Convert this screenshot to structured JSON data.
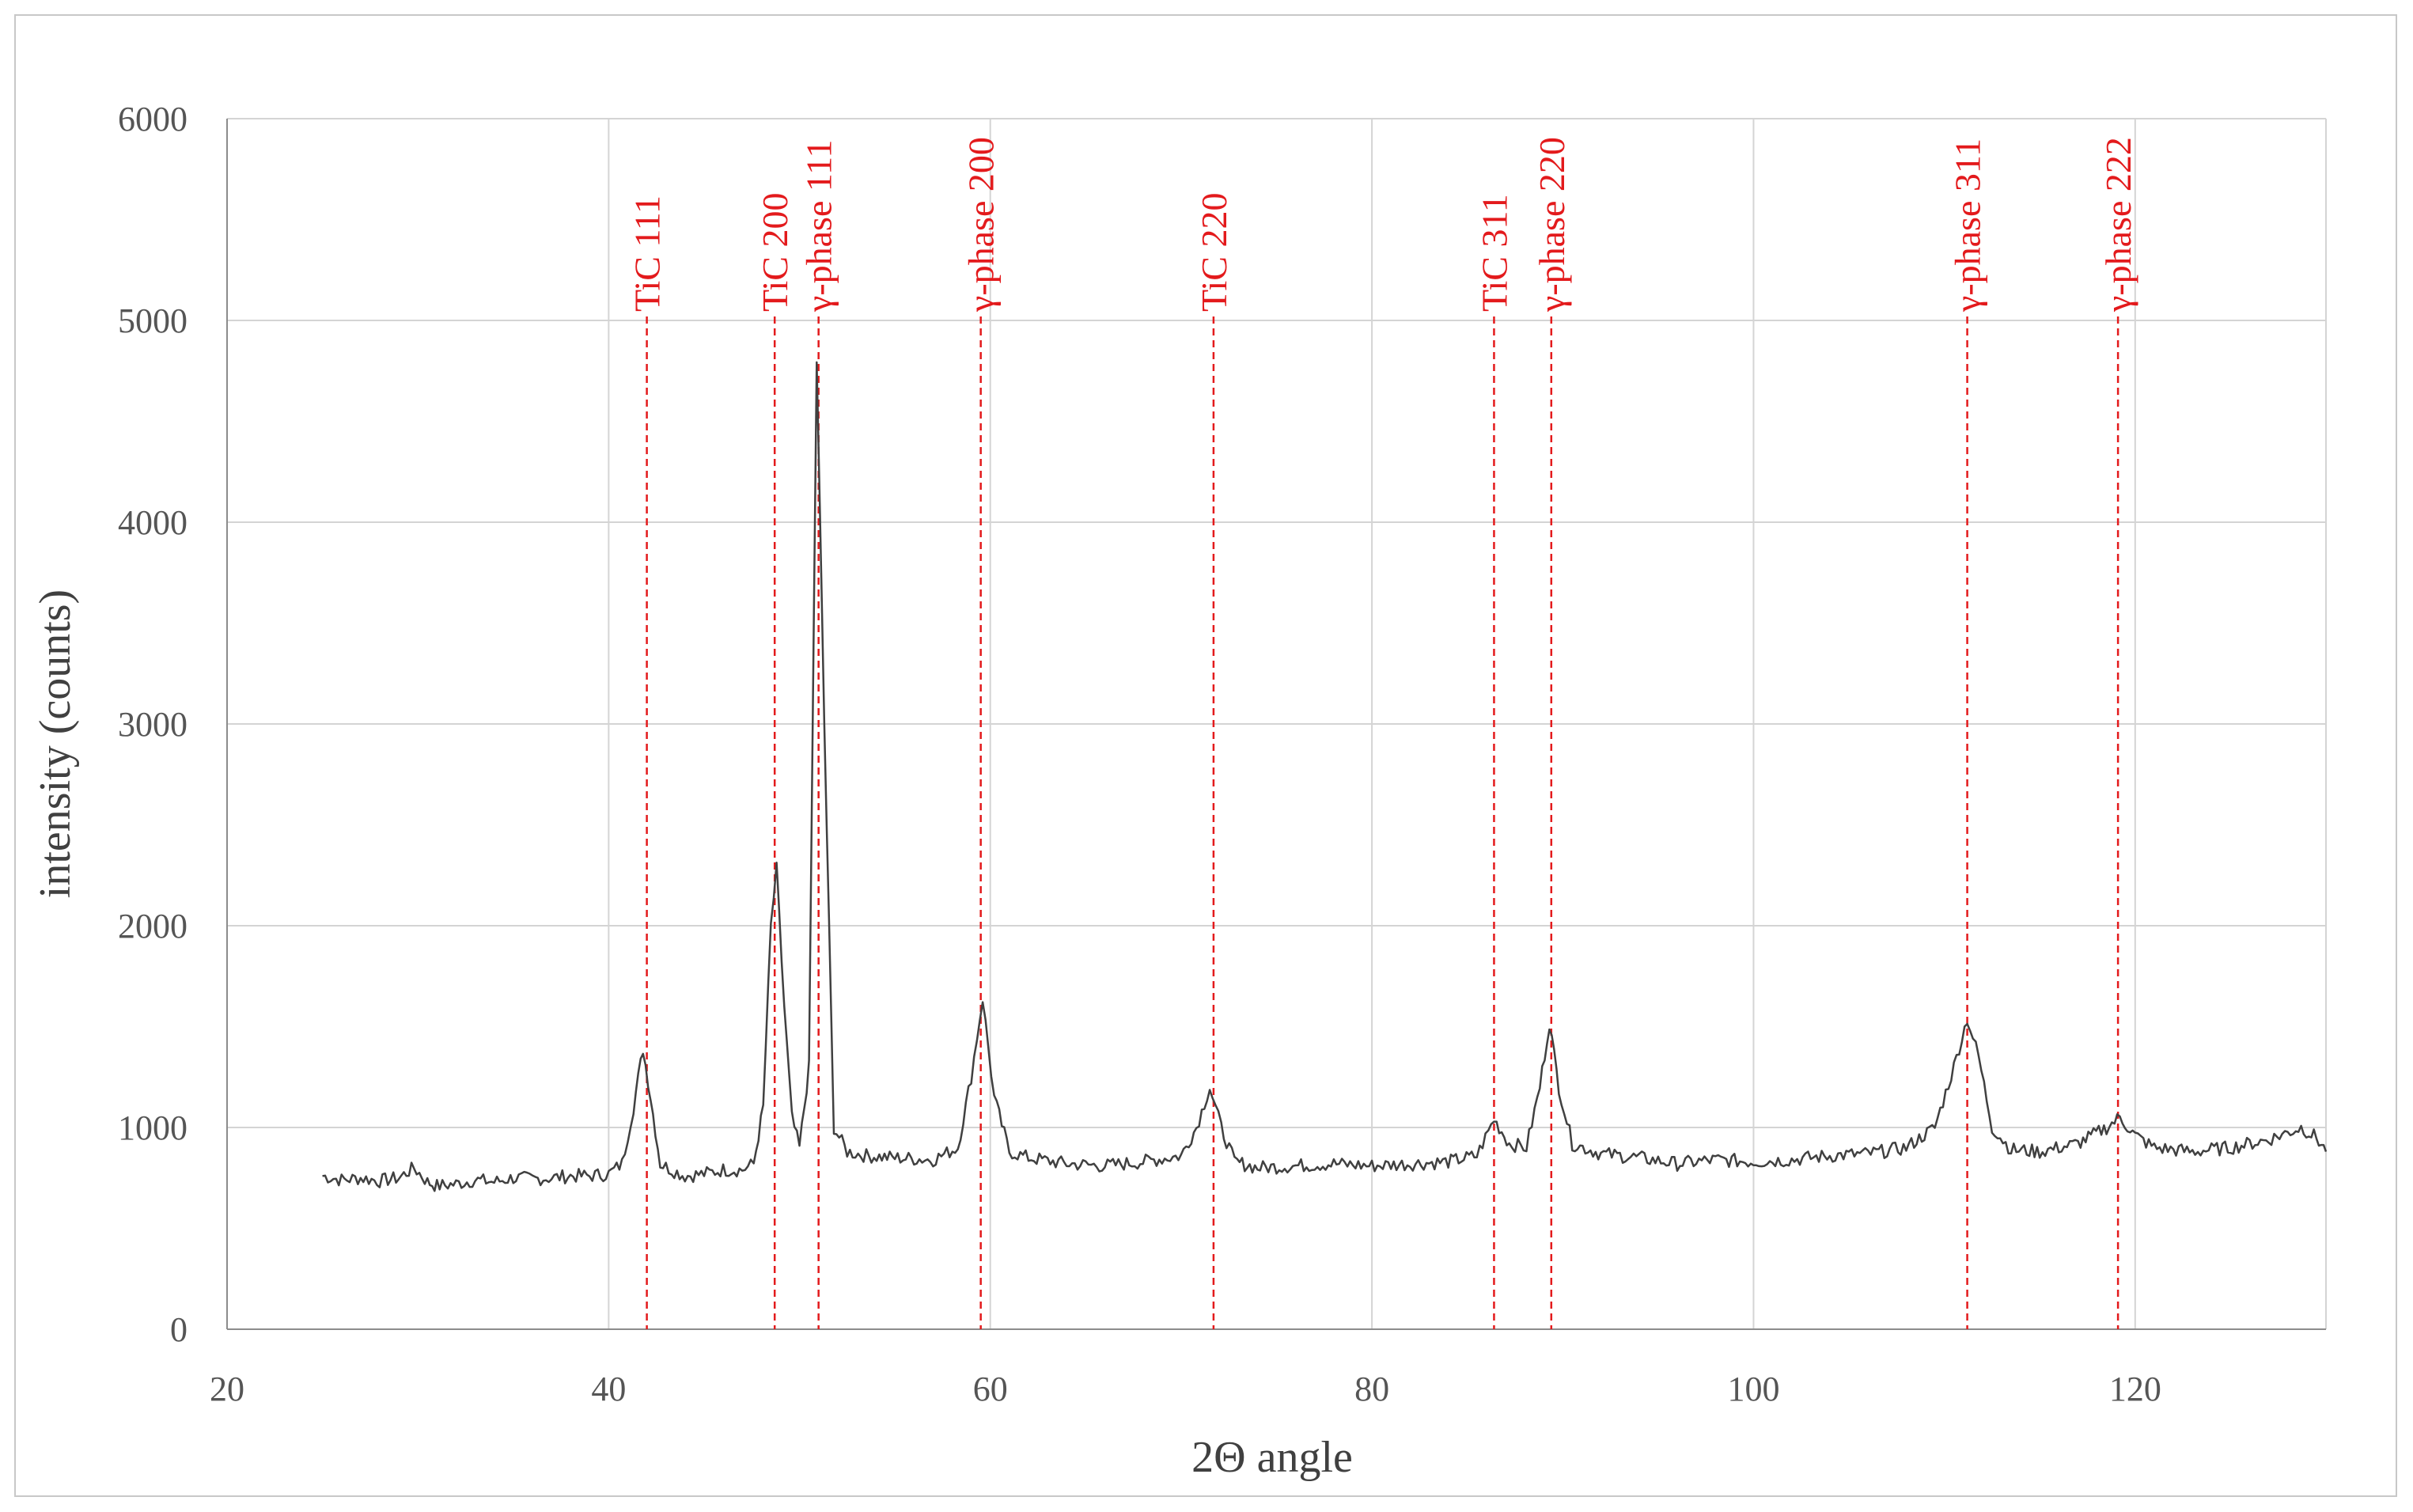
{
  "chart_data": {
    "type": "line",
    "title": "",
    "xlabel": "2Θ angle",
    "ylabel": "intensity (counts)",
    "xlim": [
      20,
      130
    ],
    "ylim": [
      0,
      6000
    ],
    "x_ticks": [
      20,
      40,
      60,
      80,
      100,
      120
    ],
    "y_ticks": [
      0,
      1000,
      2000,
      3000,
      4000,
      5000,
      6000
    ],
    "grid": true,
    "colors": {
      "line": "#404040",
      "peak_marker": "#e31a1c",
      "grid": "#d4d4d4",
      "axis": "#8c8c8c"
    },
    "series": [
      {
        "x": [
          25,
          26,
          27,
          28,
          29,
          29.8,
          30.5,
          31,
          32,
          33,
          34,
          35,
          36,
          37,
          38,
          39,
          40,
          40.7,
          41.3,
          41.8,
          42.2,
          42.7,
          43.3,
          44,
          45,
          46,
          47,
          47.6,
          48.1,
          48.5,
          48.8,
          49.2,
          49.6,
          50.0,
          50.5,
          50.9,
          51.3,
          51.8,
          52.5,
          53.5,
          55,
          57,
          58.3,
          59.0,
          59.6,
          60.2,
          61,
          62,
          64,
          66,
          68,
          70,
          70.8,
          71.5,
          72.1,
          72.8,
          74,
          76,
          78,
          80,
          82,
          84,
          85.5,
          86.4,
          87.2,
          88.1,
          88.8,
          89.3,
          89.8,
          90.5,
          92,
          94,
          96,
          98,
          100,
          102,
          104,
          106,
          108,
          109.5,
          110.5,
          111.2,
          111.8,
          112.5,
          113.5,
          115,
          117,
          118.5,
          119.2,
          120,
          121,
          123,
          125,
          127,
          128.7,
          129.5,
          130
        ],
        "y": [
          760,
          740,
          750,
          735,
          750,
          800,
          730,
          710,
          720,
          740,
          730,
          750,
          745,
          750,
          760,
          760,
          770,
          820,
          1100,
          1390,
          1150,
          820,
          790,
          760,
          770,
          790,
          790,
          820,
          1100,
          2000,
          2280,
          1600,
          1050,
          900,
          1300,
          4800,
          3000,
          1000,
          880,
          860,
          850,
          840,
          900,
          1250,
          1640,
          1150,
          880,
          850,
          820,
          810,
          830,
          860,
          1000,
          1200,
          1000,
          830,
          800,
          810,
          820,
          810,
          820,
          830,
          860,
          1040,
          920,
          900,
          1200,
          1520,
          1200,
          920,
          870,
          850,
          820,
          840,
          830,
          840,
          860,
          870,
          900,
          1000,
          1300,
          1540,
          1350,
          1000,
          890,
          880,
          920,
          1000,
          1050,
          960,
          900,
          880,
          900,
          940,
          1000,
          950,
          880
        ]
      }
    ],
    "annotations": [
      {
        "x": 42.0,
        "label": "TiC 111"
      },
      {
        "x": 48.7,
        "label": "TiC  200"
      },
      {
        "x": 51.0,
        "label": "γ-phase 111"
      },
      {
        "x": 59.5,
        "label": "γ-phase 200"
      },
      {
        "x": 71.7,
        "label": "TiC  220"
      },
      {
        "x": 86.4,
        "label": "TiC  311"
      },
      {
        "x": 89.4,
        "label": "γ-phase  220"
      },
      {
        "x": 111.2,
        "label": "γ-phase  311"
      },
      {
        "x": 119.1,
        "label": "γ-phase 222"
      }
    ]
  }
}
